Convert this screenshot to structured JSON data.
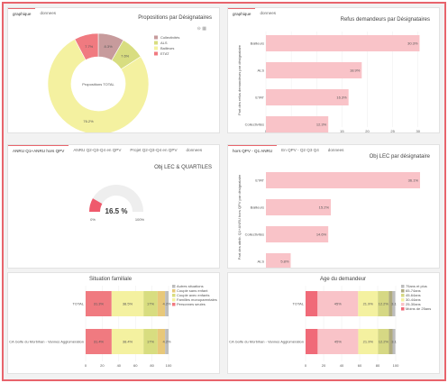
{
  "colors": {
    "red": "#f07a80",
    "pink": "#f9c3c8",
    "mauve": "#c79b9c",
    "olive": "#d8dd80",
    "yellow": "#f4f1a0",
    "grey": "#bdbdbd"
  },
  "p1": {
    "tabs": [
      "graphique",
      "donnees"
    ],
    "title": "Propositions par Désignataires",
    "center_label": "Propositions TOTAL",
    "chart_data": {
      "type": "pie",
      "categories": [
        "Collectivités",
        "ALS",
        "Bailleurs",
        "ETAT"
      ],
      "values": [
        8.3,
        7.6,
        76.2,
        7.7
      ],
      "labels": [
        "8.3%",
        "7.6%",
        "76.2%",
        "7.7%"
      ],
      "legend": "top-right"
    }
  },
  "p2": {
    "tabs": [
      "graphique",
      "donnees"
    ],
    "title": "Refus demandeurs par Désignataires",
    "ylabel": "Part des refus demandeurs par désignataire",
    "chart_data": {
      "type": "bar",
      "orientation": "horizontal",
      "categories": [
        "Bailleurs",
        "ALS",
        "ETAT",
        "Collectivités"
      ],
      "values": [
        30.3,
        18.9,
        16.3,
        12.3
      ],
      "labels": [
        "30.3%",
        "18.9%",
        "16.3%",
        "12.3%"
      ],
      "xticks": [
        "0",
        "5",
        "10",
        "15",
        "20",
        "25",
        "30"
      ],
      "xlim": [
        0,
        32
      ]
    }
  },
  "p3": {
    "tabs": [
      "ANRU Q1+ANRU hors QPV",
      "ANRU Q2-Q3-Q4 en QPV",
      "Projet Q2-Q3-Q4 en QPV",
      "donnees"
    ],
    "title": "Obj LEC & QUARTILES",
    "value_label": "16.5 %",
    "chart_data": {
      "type": "gauge",
      "value": 16.5,
      "min": 0,
      "max": 100,
      "min_label": "0%",
      "max_label": "100%"
    }
  },
  "p4": {
    "tabs": [
      "hors QPV - Q1 ANRU",
      "En QPV - Q2 Q3 Q4",
      "donnees"
    ],
    "title": "Obj LEC par désignataire",
    "ylabel": "Part des attrib. Q1+ANRU hors QPV par désignataire",
    "chart_data": {
      "type": "bar",
      "orientation": "horizontal",
      "categories": [
        "ETAT",
        "Bailleurs",
        "Collectivités",
        "ALS"
      ],
      "values": [
        36.1,
        15.2,
        14.6,
        5.8
      ],
      "labels": [
        "36.1%",
        "15.2%",
        "14.6%",
        "5.8%"
      ],
      "xlim": [
        0,
        38
      ]
    }
  },
  "p5": {
    "title": "Situation familiale",
    "chart_data": {
      "type": "bar",
      "stacked": true,
      "orientation": "horizontal",
      "categories": [
        "TOTAL",
        "CA Golfe du Morbihan - Vannes Agglomération"
      ],
      "series": [
        {
          "name": "Personnes seules",
          "values": [
            31.3,
            31.4
          ],
          "labels": [
            "31.3%",
            "31.4%"
          ]
        },
        {
          "name": "Familles monoparentales",
          "values": [
            38.5,
            38.4
          ],
          "labels": [
            "38.5%",
            "38.4%"
          ]
        },
        {
          "name": "Couple avec enfants",
          "values": [
            17.0,
            17.0
          ],
          "labels": [
            "17%",
            "17%"
          ]
        },
        {
          "name": "Couple sans enfant",
          "values": [
            9.0,
            9.0
          ],
          "labels": [
            "",
            ""
          ]
        },
        {
          "name": "Autres situations",
          "values": [
            4.2,
            4.2
          ],
          "labels": [
            "4.2%",
            "4.2%"
          ]
        }
      ],
      "legend_order": [
        "Autres situations",
        "Couple sans enfant",
        "Couple avec enfants",
        "Familles monoparentales",
        "Personnes seules"
      ],
      "xticks": [
        "0",
        "20",
        "40",
        "60",
        "80",
        "100"
      ],
      "xlim": [
        0,
        100
      ]
    }
  },
  "p6": {
    "title": "Age du demandeur",
    "chart_data": {
      "type": "bar",
      "stacked": true,
      "orientation": "horizontal",
      "categories": [
        "TOTAL",
        "CA Golfe du Morbihan - Vannes Agglomération"
      ],
      "series": [
        {
          "name": "Moins de 25ans",
          "values": [
            13.3,
            13.4
          ],
          "labels": [
            "",
            ""
          ]
        },
        {
          "name": "25-30ans",
          "values": [
            45.0,
            45.0
          ],
          "labels": [
            "45%",
            "45%"
          ]
        },
        {
          "name": "30-44ans",
          "values": [
            21.9,
            21.9
          ],
          "labels": [
            "21.9%",
            "21.9%"
          ]
        },
        {
          "name": "45-64ans",
          "values": [
            12.2,
            12.2
          ],
          "labels": [
            "12.2%",
            "12.2%"
          ]
        },
        {
          "name": "65-74ans",
          "values": [
            4.0,
            4.0
          ],
          "labels": [
            "",
            ""
          ]
        },
        {
          "name": "75ans et plus",
          "values": [
            3.1,
            3.1
          ],
          "labels": [
            "3.1",
            "3.1"
          ]
        }
      ],
      "legend_order": [
        "75ans et plus",
        "65-74ans",
        "45-64ans",
        "30-44ans",
        "25-30ans",
        "Moins de 25ans"
      ],
      "xticks": [
        "0",
        "20",
        "40",
        "60",
        "80",
        "100"
      ],
      "xlim": [
        0,
        100
      ]
    }
  }
}
